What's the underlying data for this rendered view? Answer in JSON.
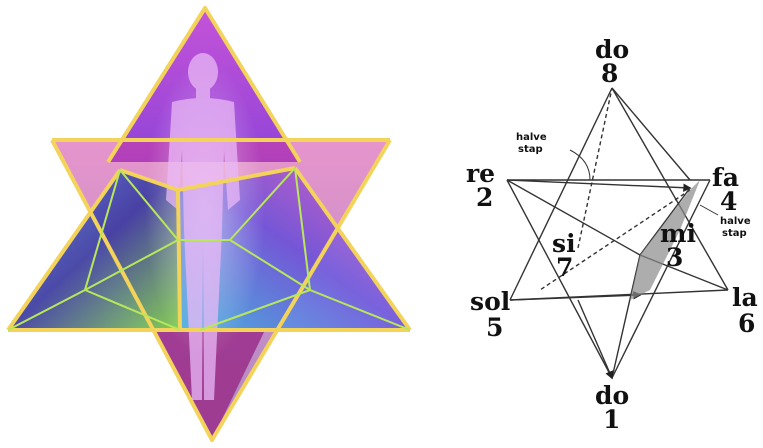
{
  "diagram": {
    "notes": [
      {
        "id": "do-top",
        "name": "do",
        "num": "8"
      },
      {
        "id": "re",
        "name": "re",
        "num": "2"
      },
      {
        "id": "fa",
        "name": "fa",
        "num": "4"
      },
      {
        "id": "mi",
        "name": "mi",
        "num": "3"
      },
      {
        "id": "si",
        "name": "si",
        "num": "7"
      },
      {
        "id": "sol",
        "name": "sol",
        "num": "5"
      },
      {
        "id": "la",
        "name": "la",
        "num": "6"
      },
      {
        "id": "do-bottom",
        "name": "do",
        "num": "1"
      }
    ],
    "annotations": [
      {
        "id": "halve-stap-top",
        "line1": "halve",
        "line2": "stap"
      },
      {
        "id": "halve-stap-right",
        "line1": "halve",
        "line2": "stap"
      }
    ]
  },
  "colors": {
    "gold": "#e8c74a",
    "violet": "#9b3fd6",
    "magenta": "#d63fb0",
    "blue": "#3a5bc7",
    "cyan": "#49c0d9",
    "green": "#86d23c"
  }
}
